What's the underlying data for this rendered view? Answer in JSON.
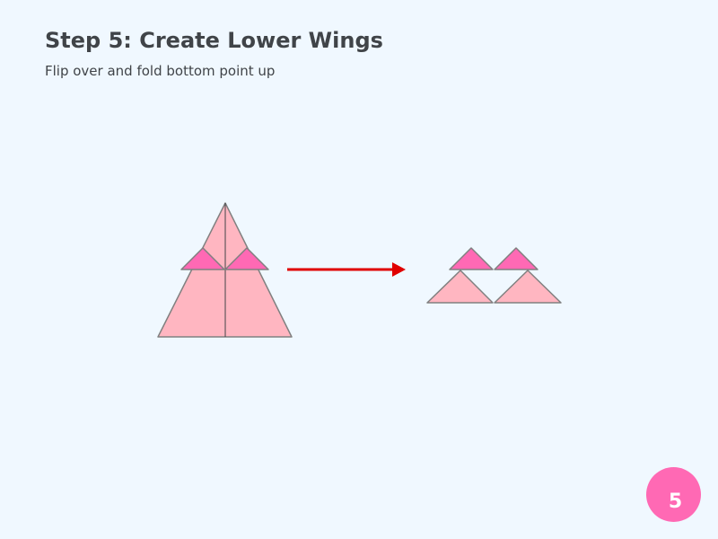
{
  "page": {
    "background_color": "#f0f8ff",
    "text_color": "#404448"
  },
  "step": {
    "title": "Step 5: Create Lower Wings",
    "instruction": "Flip over and fold bottom point up",
    "number": "5"
  },
  "colors": {
    "paper_light": "#ffb6c1",
    "paper_dark": "#ff69b4",
    "paper_edge": "#808080",
    "crease_line": "#404448",
    "arrow": "#e00000",
    "badge": "#ff69b4"
  }
}
